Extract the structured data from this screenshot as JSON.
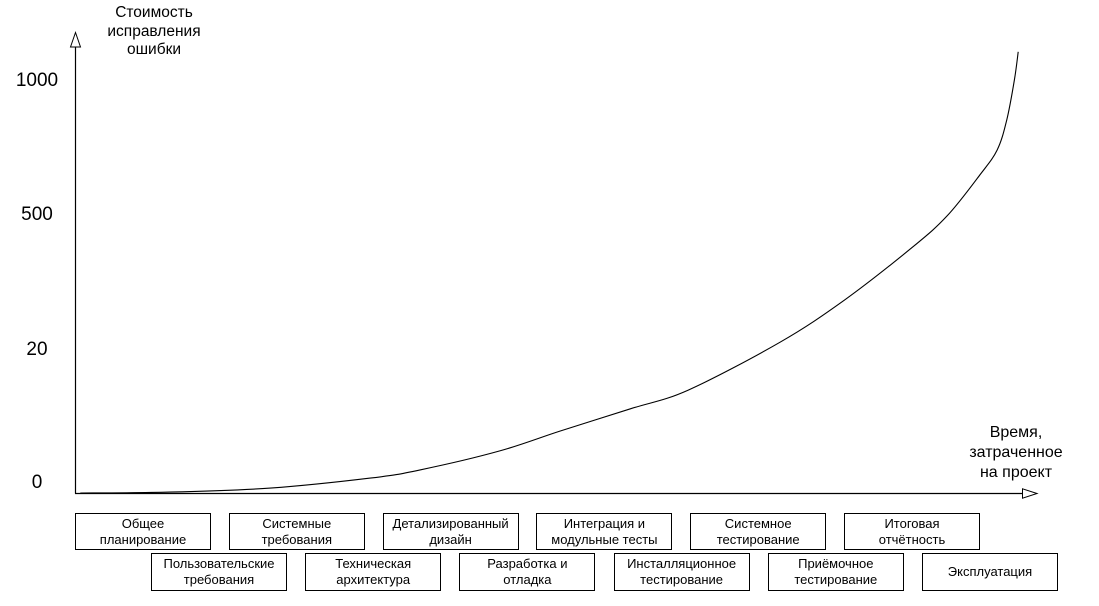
{
  "y_axis_title": "Стоимость\nисправления\nошибки",
  "x_axis_title": "Время,\nзатраченное\nна проект",
  "colors": {
    "line": "#000000",
    "text": "#000000",
    "background": "#ffffff",
    "box_border": "#000000"
  },
  "chart_data": {
    "type": "line",
    "title": "Стоимость исправления ошибки в зависимости от времени, затраченного на проект",
    "ylabel": "Стоимость исправления ошибки",
    "xlabel": "Время, затраченное на проект",
    "y_tick_labels": [
      "1000",
      "500",
      "20",
      "0"
    ],
    "y_tick_values": [
      1000,
      500,
      20,
      0
    ],
    "y_axis_note": "нелинейная шкала: отметки 0, 20, 500, 1000 расположены равномерно",
    "grid": false,
    "legend": false,
    "series": [
      {
        "name": "Стоимость исправления ошибки",
        "shape": "экспоненциальный рост, резкий подъём в конце проекта",
        "points_frac": [
          [
            0.005,
            0.001
          ],
          [
            0.098,
            0.003
          ],
          [
            0.203,
            0.012
          ],
          [
            0.307,
            0.034
          ],
          [
            0.359,
            0.052
          ],
          [
            0.442,
            0.094
          ],
          [
            0.505,
            0.138
          ],
          [
            0.578,
            0.187
          ],
          [
            0.638,
            0.228
          ],
          [
            0.734,
            0.334
          ],
          [
            0.801,
            0.427
          ],
          [
            0.872,
            0.544
          ],
          [
            0.908,
            0.613
          ],
          [
            0.942,
            0.703
          ],
          [
            0.96,
            0.758
          ],
          [
            0.97,
            0.824
          ],
          [
            0.978,
            0.913
          ],
          [
            0.982,
            0.975
          ]
        ]
      }
    ],
    "phases_row1": [
      "Общее\nпланирование",
      "Системные\nтребования",
      "Детализированный\nдизайн",
      "Интеграция и\nмодульные тесты",
      "Системное\nтестирование",
      "Итоговая\nотчётность"
    ],
    "phases_row2": [
      "Пользовательские\nтребования",
      "Техническая\nархитектура",
      "Разработка и\nотладка",
      "Инсталляционное\nтестирование",
      "Приёмочное\nтестирование",
      "Эксплуатация"
    ]
  }
}
